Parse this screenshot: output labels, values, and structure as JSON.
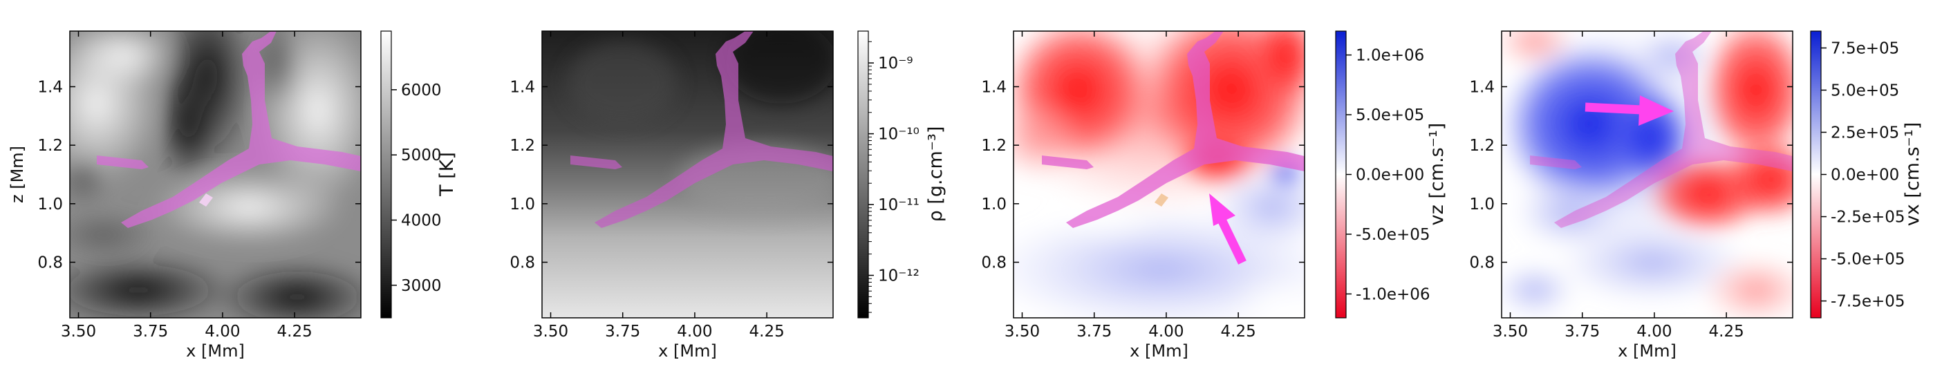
{
  "chart_data": [
    {
      "type": "heatmap",
      "colormap": "gray",
      "xlabel": "x [Mm]",
      "ylabel": "z [Mm]",
      "xlim": [
        3.47,
        4.48
      ],
      "ylim": [
        0.61,
        1.59
      ],
      "xticks": [
        "3.50",
        "3.75",
        "4.00",
        "4.25"
      ],
      "yticks": [
        "0.8",
        "1.0",
        "1.2",
        "1.4"
      ],
      "colorbar": {
        "label": "T [K]",
        "range": [
          2500,
          6900
        ],
        "ticks": [
          "3000",
          "4000",
          "5000",
          "6000"
        ]
      },
      "overlay_color": "#d86bd8"
    },
    {
      "type": "heatmap",
      "colormap": "gray",
      "xlabel": "x [Mm]",
      "ylabel": "",
      "xlim": [
        3.47,
        4.48
      ],
      "ylim": [
        0.61,
        1.59
      ],
      "xticks": [
        "3.50",
        "3.75",
        "4.00",
        "4.25"
      ],
      "yticks": [
        "0.8",
        "1.0",
        "1.2",
        "1.4"
      ],
      "colorbar": {
        "label": "ρ [g.cm⁻³]",
        "scale": "log",
        "range_exp": [
          -12.6,
          -8.55
        ],
        "ticks": [
          "10⁻¹²",
          "10⁻¹¹",
          "10⁻¹⁰",
          "10⁻⁹"
        ]
      },
      "overlay_color": "#d86bd8"
    },
    {
      "type": "heatmap",
      "colormap": "bwr_r",
      "xlabel": "x [Mm]",
      "ylabel": "",
      "xlim": [
        3.47,
        4.48
      ],
      "ylim": [
        0.61,
        1.59
      ],
      "xticks": [
        "3.50",
        "3.75",
        "4.00",
        "4.25"
      ],
      "yticks": [
        "0.8",
        "1.0",
        "1.2",
        "1.4"
      ],
      "colorbar": {
        "label": "vz [cm.s⁻¹]",
        "range": [
          -1200000.0,
          1200000.0
        ],
        "ticks": [
          "1.0e+06",
          "5.0e+05",
          "0.0e+00",
          "-5.0e+05",
          "-1.0e+06"
        ]
      },
      "overlay_color": "#d86bd8",
      "arrow_color": "#ff44ee"
    },
    {
      "type": "heatmap",
      "colormap": "bwr_r",
      "xlabel": "x [Mm]",
      "ylabel": "",
      "xlim": [
        3.47,
        4.48
      ],
      "ylim": [
        0.61,
        1.59
      ],
      "xticks": [
        "3.50",
        "3.75",
        "4.00",
        "4.25"
      ],
      "yticks": [
        "0.8",
        "1.0",
        "1.2",
        "1.4"
      ],
      "colorbar": {
        "label": "vx [cm.s⁻¹]",
        "range": [
          -850000.0,
          850000.0
        ],
        "ticks": [
          "7.5e+05",
          "5.0e+05",
          "2.5e+05",
          "0.0e+00",
          "-2.5e+05",
          "-5.0e+05",
          "-7.5e+05"
        ]
      },
      "overlay_color": "#d86bd8",
      "arrow_color": "#ff44ee"
    }
  ]
}
